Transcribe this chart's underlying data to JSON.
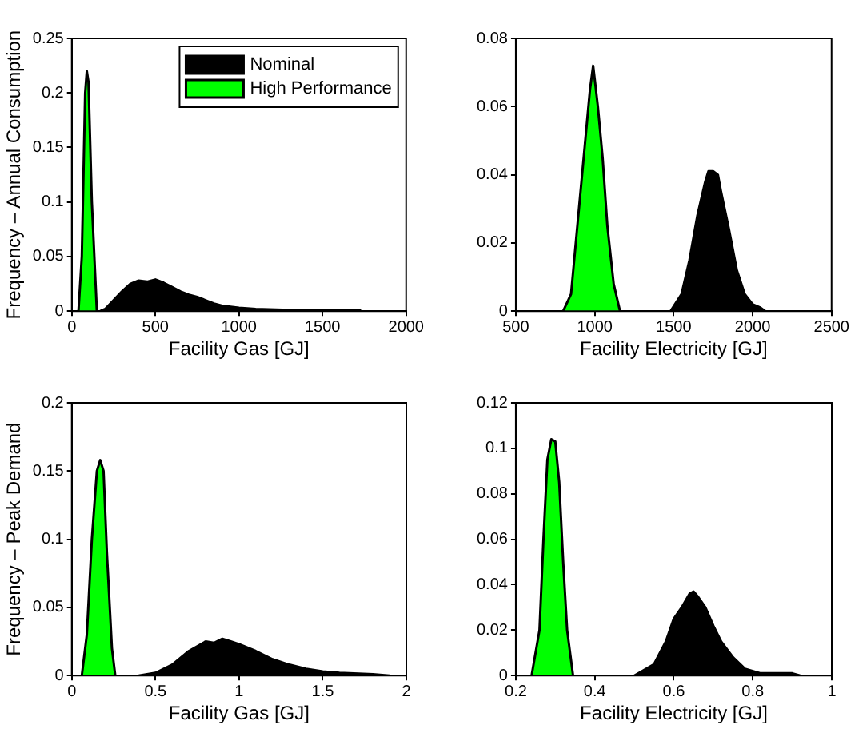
{
  "chart_data": [
    {
      "type": "area",
      "xlabel": "Facility Gas [GJ]",
      "ylabel": "Frequency – Annual Consumption",
      "xlim": [
        0,
        2000
      ],
      "xticks": [
        0,
        500,
        1000,
        1500,
        2000
      ],
      "ylim": [
        0,
        0.25
      ],
      "yticks": [
        0,
        0.05,
        0.1,
        0.15,
        0.2,
        0.25
      ],
      "legend": "top right",
      "marker": "none",
      "grid": false,
      "series": [
        {
          "name": "Nominal",
          "color": "#000000",
          "x": [
            170,
            200,
            250,
            300,
            350,
            400,
            450,
            500,
            550,
            600,
            650,
            700,
            750,
            800,
            850,
            900,
            1000,
            1100,
            1300,
            1500,
            1720,
            1730
          ],
          "values": [
            0,
            0.002,
            0.01,
            0.018,
            0.025,
            0.028,
            0.027,
            0.029,
            0.026,
            0.022,
            0.018,
            0.015,
            0.013,
            0.01,
            0.007,
            0.005,
            0.003,
            0.002,
            0.001,
            0.001,
            0.001,
            0
          ]
        },
        {
          "name": "High Performance",
          "color": "#00ff00",
          "x": [
            40,
            60,
            80,
            90,
            100,
            120,
            150
          ],
          "values": [
            0,
            0.05,
            0.2,
            0.22,
            0.21,
            0.1,
            0
          ]
        }
      ]
    },
    {
      "type": "area",
      "xlabel": "Facility Electricity [GJ]",
      "xlim": [
        500,
        2500
      ],
      "xticks": [
        500,
        1000,
        1500,
        2000,
        2500
      ],
      "ylim": [
        0,
        0.08
      ],
      "yticks": [
        0,
        0.02,
        0.04,
        0.06,
        0.08
      ],
      "marker": "none",
      "grid": false,
      "series": [
        {
          "color": "#000000",
          "x": [
            1480,
            1550,
            1600,
            1650,
            1700,
            1720,
            1750,
            1780,
            1800,
            1850,
            1900,
            1950,
            2000,
            2050,
            2080
          ],
          "values": [
            0,
            0.005,
            0.015,
            0.028,
            0.038,
            0.041,
            0.041,
            0.04,
            0.035,
            0.024,
            0.012,
            0.005,
            0.002,
            0.001,
            0
          ]
        },
        {
          "color": "#00ff00",
          "x": [
            800,
            850,
            880,
            920,
            950,
            970,
            990,
            1000,
            1020,
            1050,
            1080,
            1120,
            1160
          ],
          "values": [
            0,
            0.005,
            0.02,
            0.04,
            0.055,
            0.065,
            0.072,
            0.068,
            0.06,
            0.045,
            0.025,
            0.008,
            0
          ]
        }
      ]
    },
    {
      "type": "area",
      "xlabel": "Facility Gas [GJ]",
      "ylabel": "Frequency – Peak Demand",
      "xlim": [
        0,
        2
      ],
      "xticks": [
        0,
        0.5,
        1,
        1.5,
        2
      ],
      "ylim": [
        0,
        0.2
      ],
      "yticks": [
        0,
        0.05,
        0.1,
        0.15,
        0.2
      ],
      "marker": "none",
      "grid": false,
      "series": [
        {
          "color": "#000000",
          "x": [
            0.4,
            0.5,
            0.6,
            0.7,
            0.8,
            0.85,
            0.9,
            0.95,
            1.0,
            1.1,
            1.2,
            1.3,
            1.4,
            1.5,
            1.6,
            1.8,
            1.9
          ],
          "values": [
            0,
            0.002,
            0.008,
            0.018,
            0.025,
            0.024,
            0.027,
            0.025,
            0.023,
            0.018,
            0.012,
            0.008,
            0.005,
            0.003,
            0.002,
            0.001,
            0
          ]
        },
        {
          "color": "#00ff00",
          "x": [
            0.06,
            0.09,
            0.12,
            0.15,
            0.17,
            0.19,
            0.21,
            0.24,
            0.26
          ],
          "values": [
            0,
            0.03,
            0.1,
            0.15,
            0.158,
            0.15,
            0.09,
            0.02,
            0
          ]
        }
      ]
    },
    {
      "type": "area",
      "xlabel": "Facility Electricity [GJ]",
      "xlim": [
        0.2,
        1
      ],
      "xticks": [
        0.2,
        0.4,
        0.6,
        0.8,
        1
      ],
      "ylim": [
        0,
        0.12
      ],
      "yticks": [
        0,
        0.02,
        0.04,
        0.06,
        0.08,
        0.1,
        0.12
      ],
      "marker": "none",
      "grid": false,
      "series": [
        {
          "color": "#000000",
          "x": [
            0.5,
            0.55,
            0.58,
            0.6,
            0.62,
            0.64,
            0.65,
            0.66,
            0.68,
            0.7,
            0.72,
            0.75,
            0.78,
            0.82,
            0.9,
            0.92
          ],
          "values": [
            0,
            0.005,
            0.015,
            0.025,
            0.03,
            0.036,
            0.037,
            0.035,
            0.03,
            0.022,
            0.015,
            0.008,
            0.003,
            0.001,
            0.001,
            0
          ]
        },
        {
          "color": "#00ff00",
          "x": [
            0.24,
            0.26,
            0.27,
            0.28,
            0.29,
            0.3,
            0.31,
            0.32,
            0.33,
            0.345
          ],
          "values": [
            0,
            0.02,
            0.06,
            0.095,
            0.104,
            0.103,
            0.085,
            0.05,
            0.02,
            0
          ]
        }
      ]
    }
  ]
}
